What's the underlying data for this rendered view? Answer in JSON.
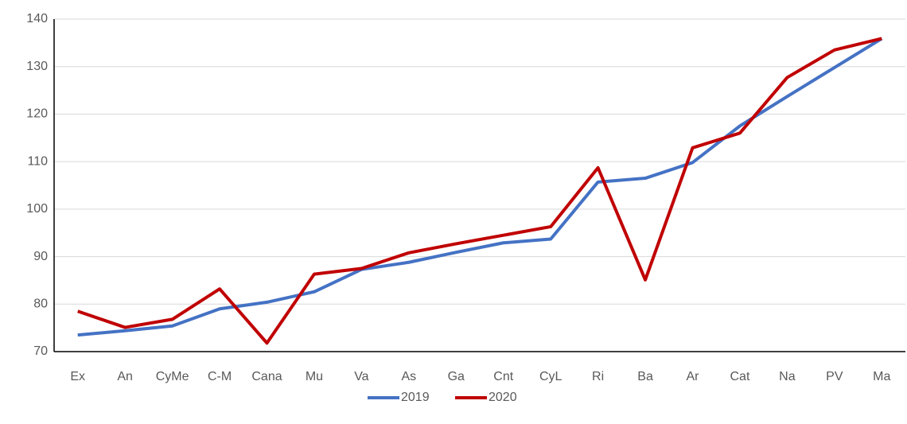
{
  "chart_data": {
    "type": "line",
    "categories": [
      "Ex",
      "An",
      "CyMe",
      "C-M",
      "Cana",
      "Mu",
      "Va",
      "As",
      "Ga",
      "Cnt",
      "CyL",
      "Ri",
      "Ba",
      "Ar",
      "Cat",
      "Na",
      "PV",
      "Ma"
    ],
    "series": [
      {
        "name": "2019",
        "color": "#4472c4",
        "values": [
          73.5,
          74.4,
          75.4,
          79.0,
          80.4,
          82.6,
          87.3,
          88.8,
          90.9,
          92.9,
          93.7,
          105.7,
          106.5,
          109.8,
          117.5,
          123.7,
          129.8,
          135.9
        ]
      },
      {
        "name": "2020",
        "color": "#c00000",
        "values": [
          78.5,
          75.1,
          76.8,
          83.2,
          71.8,
          86.3,
          87.5,
          90.8,
          92.7,
          94.5,
          96.3,
          108.7,
          85.1,
          112.9,
          116.0,
          127.7,
          133.5,
          135.9
        ]
      }
    ],
    "ylim": [
      70,
      140
    ],
    "yticks": [
      70,
      80,
      90,
      100,
      110,
      120,
      130,
      140
    ],
    "grid": true,
    "legend": "bottom"
  }
}
